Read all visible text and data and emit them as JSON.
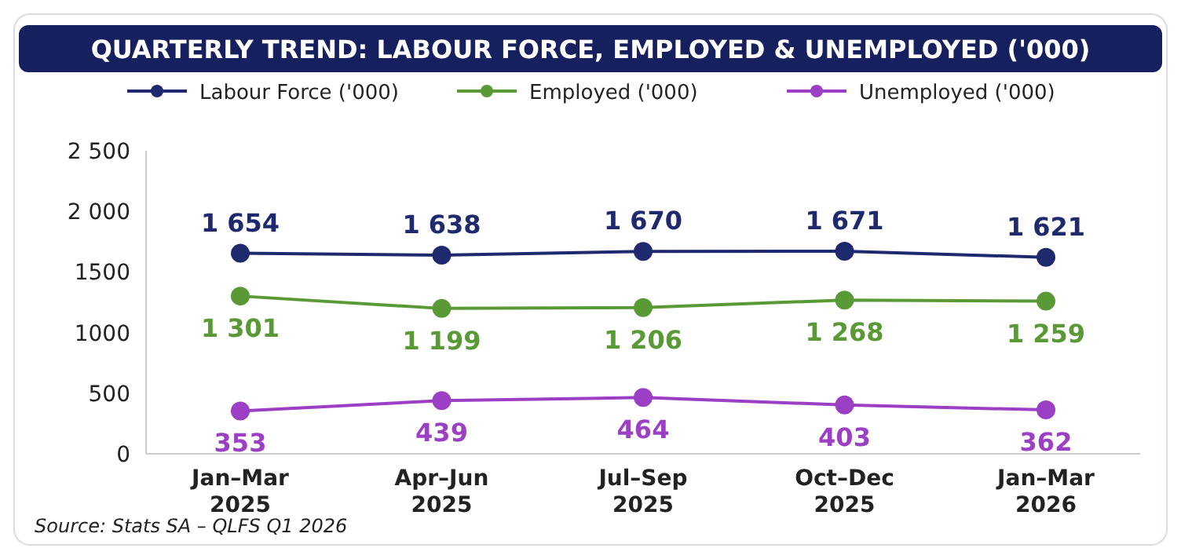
{
  "chart_data": {
    "type": "line",
    "title": "QUARTERLY TREND: LABOUR FORCE, EMPLOYED & UNEMPLOYED ('000)",
    "categories": [
      "Jan–Mar 2025",
      "Apr–Jun 2025",
      "Jul–Sep 2025",
      "Oct–Dec 2025",
      "Jan–Mar 2026"
    ],
    "series": [
      {
        "name": "Labour Force ('000)",
        "color": "#1f2a6e",
        "values": [
          1654,
          1638,
          1670,
          1671,
          1621
        ],
        "value_labels": [
          "1 654",
          "1 638",
          "1 670",
          "1 671",
          "1 621"
        ]
      },
      {
        "name": "Employed ('000)",
        "color": "#5a9a36",
        "values": [
          1301,
          1199,
          1206,
          1268,
          1259
        ],
        "value_labels": [
          "1 301",
          "1 199",
          "1 206",
          "1 268",
          "1 259"
        ]
      },
      {
        "name": "Unemployed ('000)",
        "color": "#9b3fc4",
        "values": [
          353,
          439,
          464,
          403,
          362
        ],
        "value_labels": [
          "353",
          "439",
          "464",
          "403",
          "362"
        ]
      }
    ],
    "ylim": [
      0,
      2500
    ],
    "yticks": [
      0,
      500,
      1000,
      1500,
      {
        "value": 2000,
        "label": "2 000"
      },
      {
        "value": 2500,
        "label": "2 500"
      }
    ],
    "legend": "top",
    "marker": "circle",
    "line_style": "solid",
    "grid": false,
    "annotations": [
      "Source: Stats SA – QLFS Q1 2026"
    ]
  }
}
